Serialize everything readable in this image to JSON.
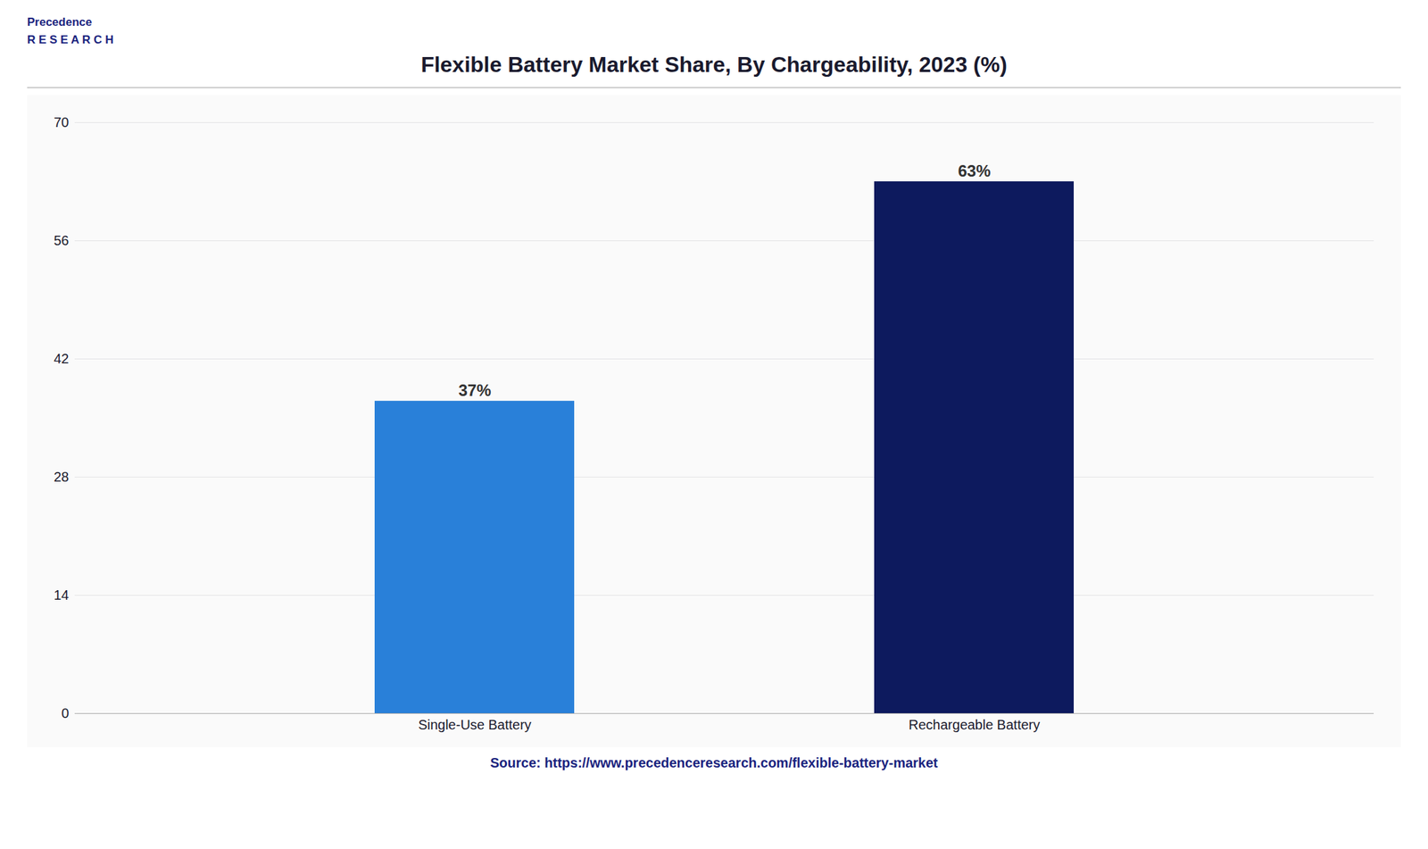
{
  "chart_data": {
    "type": "bar",
    "title": "Flexible Battery Market Share, By Chargeability, 2023 (%)",
    "categories": [
      "Single-Use Battery",
      "Rechargeable Battery"
    ],
    "values": [
      37,
      63
    ],
    "value_labels": [
      "37%",
      "63%"
    ],
    "data_labels": true,
    "colors": [
      "#2980D9",
      "#0D1A5E"
    ],
    "ylim": [
      0,
      70
    ],
    "yticks": [
      0,
      14,
      28,
      42,
      56,
      70
    ],
    "grid": true,
    "annotations": [
      "Precedence\nR E S E A R C H",
      "Source: https://www.precedenceresearch.com/flexible-battery-market"
    ]
  }
}
